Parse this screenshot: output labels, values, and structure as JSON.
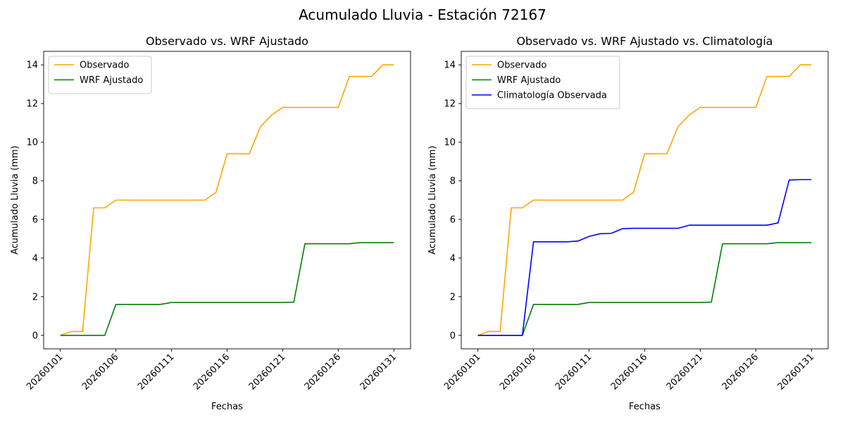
{
  "figure_title": "Acumulado Lluvia - Estación 72167",
  "chart_data": [
    {
      "type": "line",
      "title": "Observado vs. WRF Ajustado",
      "xlabel": "Fechas",
      "ylabel": "Acumulado Lluvia (mm)",
      "x": [
        "20260101",
        "20260102",
        "20260103",
        "20260104",
        "20260105",
        "20260106",
        "20260107",
        "20260108",
        "20260109",
        "20260110",
        "20260111",
        "20260112",
        "20260113",
        "20260114",
        "20260115",
        "20260116",
        "20260117",
        "20260118",
        "20260119",
        "20260120",
        "20260121",
        "20260122",
        "20260123",
        "20260124",
        "20260125",
        "20260126",
        "20260127",
        "20260128",
        "20260129",
        "20260130",
        "20260131"
      ],
      "xticks": [
        "20260101",
        "20260106",
        "20260111",
        "20260116",
        "20260121",
        "20260126",
        "20260131"
      ],
      "yticks": [
        0,
        2,
        4,
        6,
        8,
        10,
        12,
        14
      ],
      "ylim": [
        -0.7,
        14.7
      ],
      "grid": false,
      "legend_position": "top-left",
      "series": [
        {
          "name": "Observado",
          "color": "#ffa500",
          "values": [
            0,
            0.2,
            0.2,
            6.6,
            6.6,
            7.0,
            7.0,
            7.0,
            7.0,
            7.0,
            7.0,
            7.0,
            7.0,
            7.0,
            7.4,
            9.4,
            9.4,
            9.4,
            10.8,
            11.4,
            11.8,
            11.8,
            11.8,
            11.8,
            11.8,
            11.8,
            13.4,
            13.4,
            13.4,
            14.0,
            14.0
          ]
        },
        {
          "name": "WRF Ajustado",
          "color": "#008000",
          "values": [
            0,
            0,
            0,
            0,
            0,
            1.6,
            1.6,
            1.6,
            1.6,
            1.6,
            1.7,
            1.7,
            1.7,
            1.7,
            1.7,
            1.7,
            1.7,
            1.7,
            1.7,
            1.7,
            1.7,
            1.72,
            4.74,
            4.74,
            4.74,
            4.74,
            4.74,
            4.8,
            4.8,
            4.8,
            4.8
          ]
        }
      ]
    },
    {
      "type": "line",
      "title": "Observado vs. WRF Ajustado vs. Climatología",
      "xlabel": "Fechas",
      "ylabel": "Acumulado Lluvia (mm)",
      "x": [
        "20260101",
        "20260102",
        "20260103",
        "20260104",
        "20260105",
        "20260106",
        "20260107",
        "20260108",
        "20260109",
        "20260110",
        "20260111",
        "20260112",
        "20260113",
        "20260114",
        "20260115",
        "20260116",
        "20260117",
        "20260118",
        "20260119",
        "20260120",
        "20260121",
        "20260122",
        "20260123",
        "20260124",
        "20260125",
        "20260126",
        "20260127",
        "20260128",
        "20260129",
        "20260130",
        "20260131"
      ],
      "xticks": [
        "20260101",
        "20260106",
        "20260111",
        "20260116",
        "20260121",
        "20260126",
        "20260131"
      ],
      "yticks": [
        0,
        2,
        4,
        6,
        8,
        10,
        12,
        14
      ],
      "ylim": [
        -0.7,
        14.7
      ],
      "grid": false,
      "legend_position": "top-left",
      "series": [
        {
          "name": "Observado",
          "color": "#ffa500",
          "values": [
            0,
            0.2,
            0.2,
            6.6,
            6.6,
            7.0,
            7.0,
            7.0,
            7.0,
            7.0,
            7.0,
            7.0,
            7.0,
            7.0,
            7.4,
            9.4,
            9.4,
            9.4,
            10.8,
            11.4,
            11.8,
            11.8,
            11.8,
            11.8,
            11.8,
            11.8,
            13.4,
            13.4,
            13.4,
            14.0,
            14.0
          ]
        },
        {
          "name": "WRF Ajustado",
          "color": "#008000",
          "values": [
            0,
            0,
            0,
            0,
            0,
            1.6,
            1.6,
            1.6,
            1.6,
            1.6,
            1.7,
            1.7,
            1.7,
            1.7,
            1.7,
            1.7,
            1.7,
            1.7,
            1.7,
            1.7,
            1.7,
            1.72,
            4.74,
            4.74,
            4.74,
            4.74,
            4.74,
            4.8,
            4.8,
            4.8,
            4.8
          ]
        },
        {
          "name": "Climatología Observada",
          "color": "#0000ff",
          "values": [
            0,
            0,
            0,
            0,
            0,
            4.84,
            4.84,
            4.84,
            4.84,
            4.88,
            5.12,
            5.26,
            5.28,
            5.52,
            5.54,
            5.54,
            5.54,
            5.54,
            5.54,
            5.7,
            5.7,
            5.7,
            5.7,
            5.7,
            5.7,
            5.7,
            5.7,
            5.82,
            8.04,
            8.06,
            8.06
          ]
        }
      ]
    }
  ]
}
